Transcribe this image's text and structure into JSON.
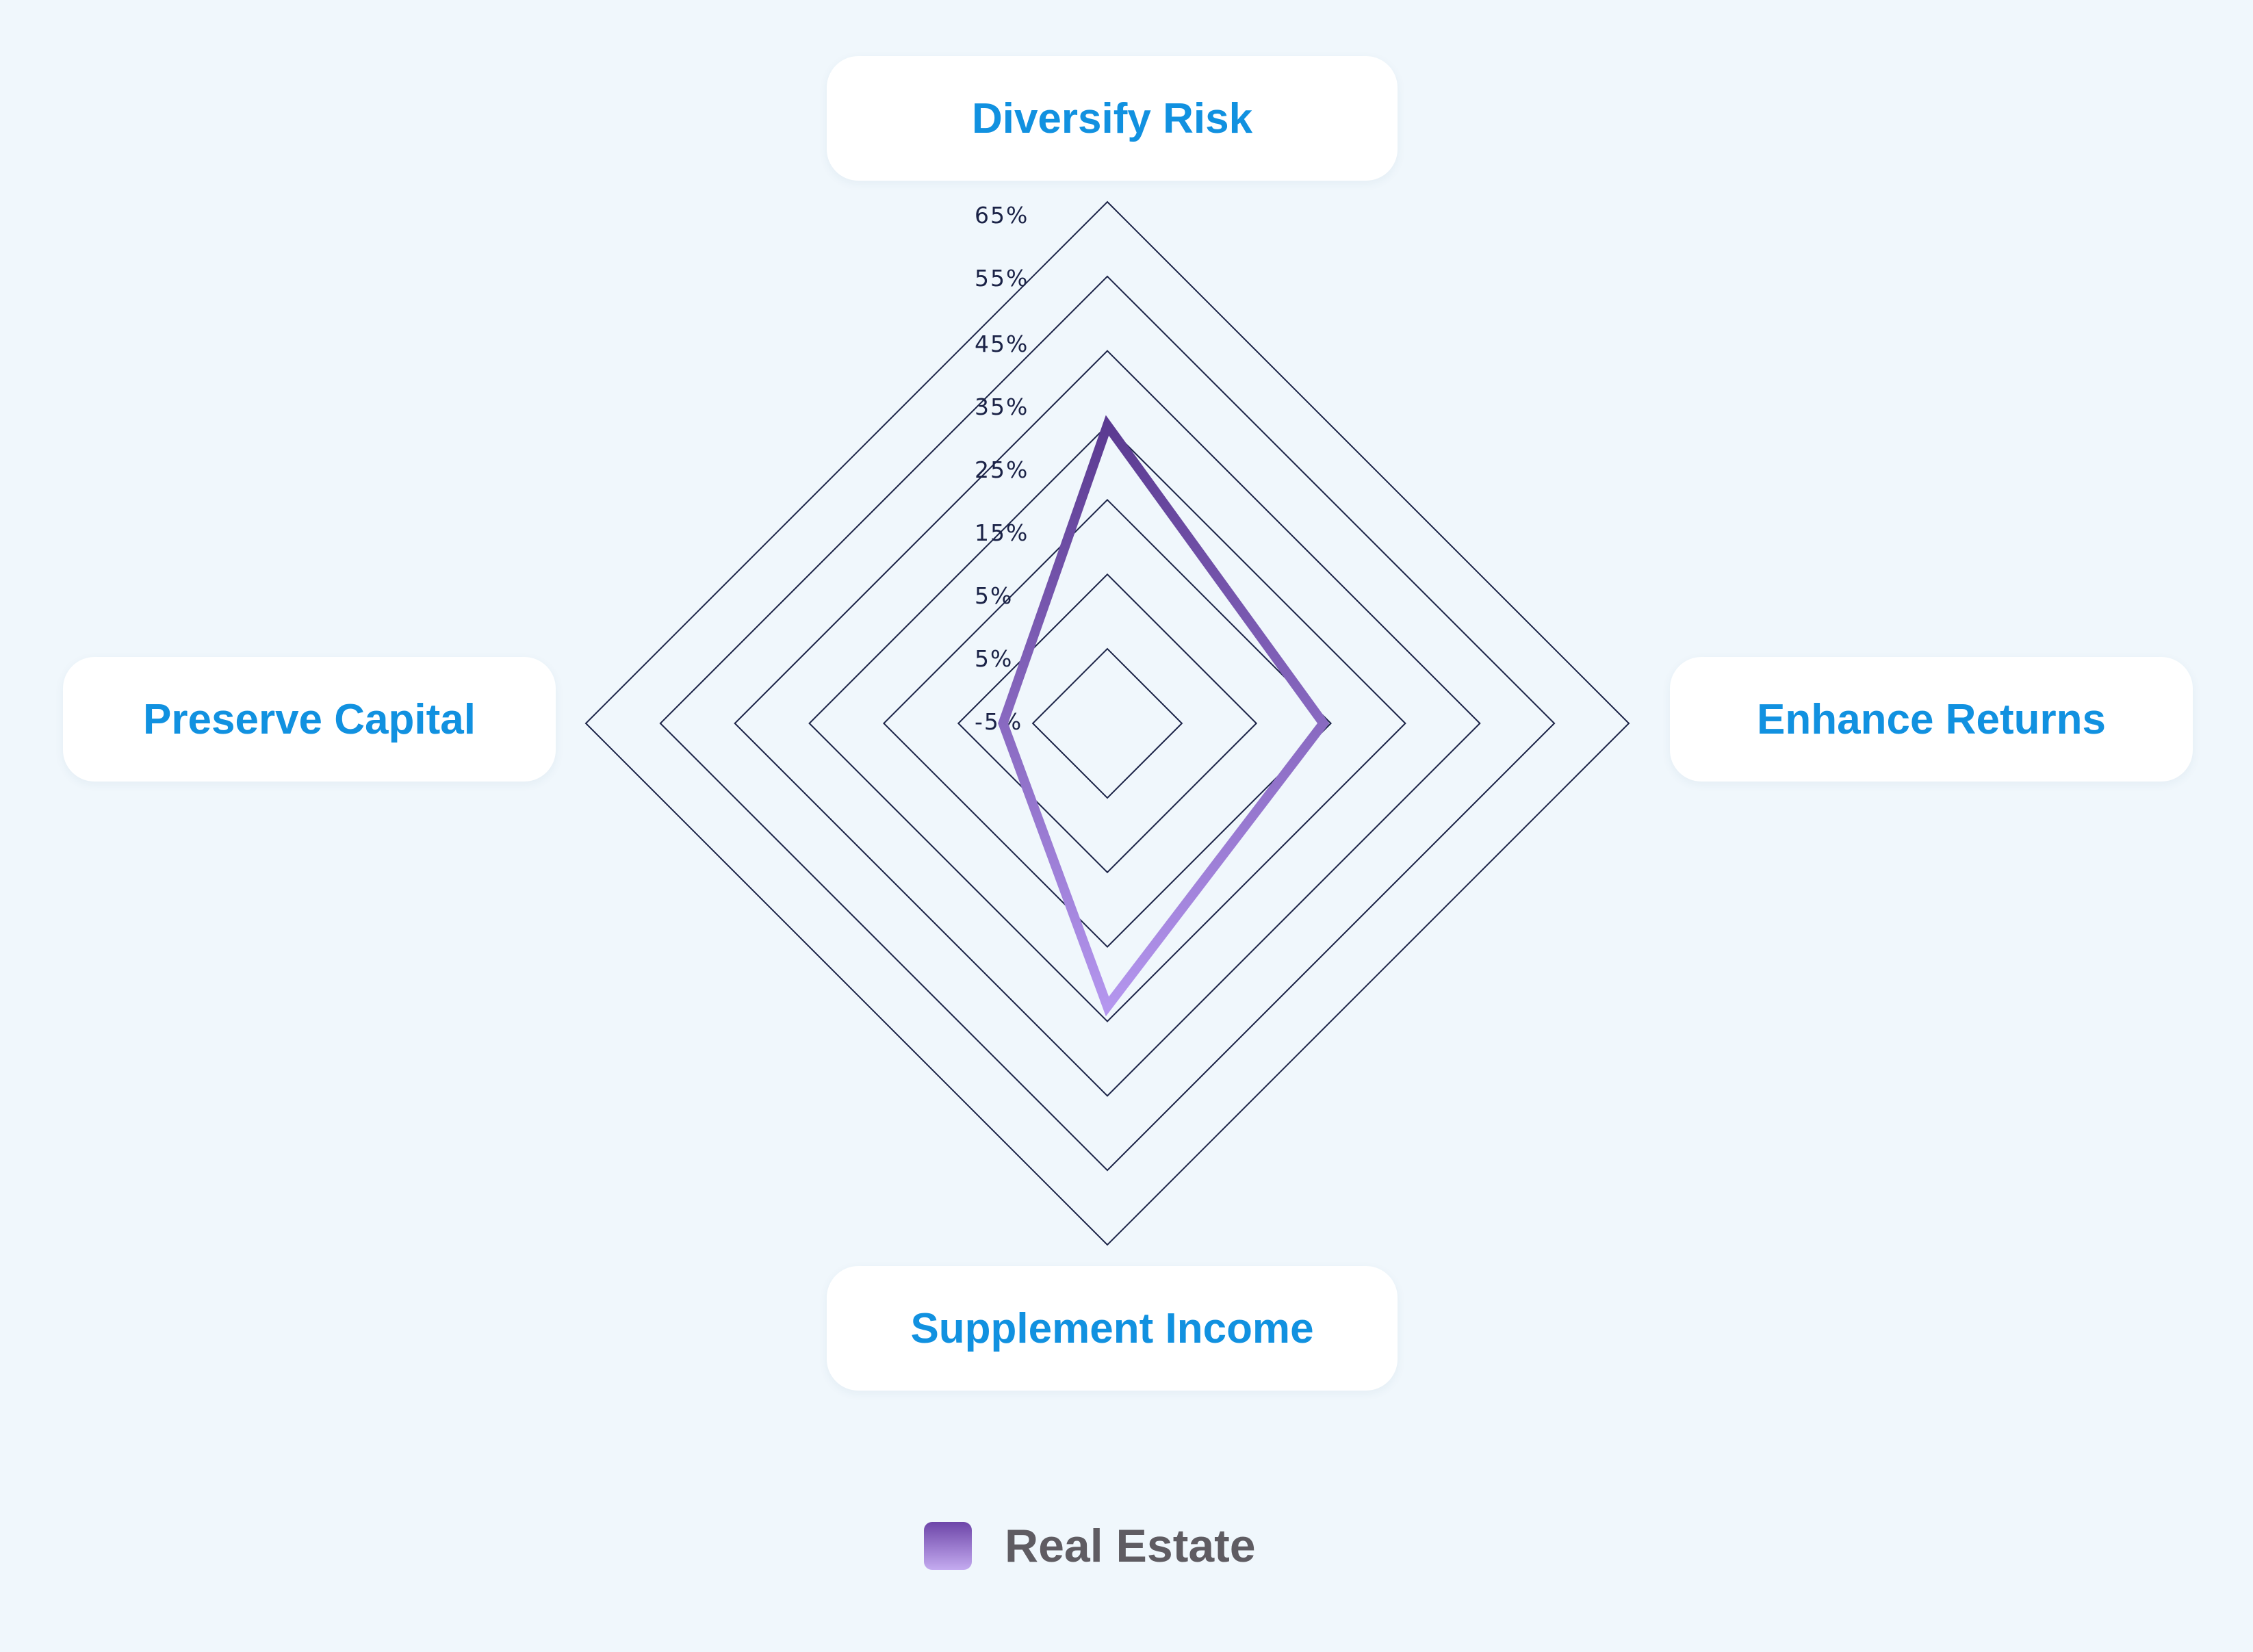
{
  "chart_data": {
    "type": "radar",
    "axes": [
      "Diversify Risk",
      "Enhance Returns",
      "Supplement Income",
      "Preserve Capital"
    ],
    "tick_labels": [
      "65%",
      "55%",
      "45%",
      "35%",
      "25%",
      "15%",
      "5%",
      "5%",
      "-5%"
    ],
    "range": [
      -5,
      65
    ],
    "rings": 7,
    "series": [
      {
        "name": "Real Estate",
        "values": [
          35,
          24,
          33,
          9
        ]
      }
    ],
    "legend_position": "bottom-center",
    "grid": true
  },
  "colors": {
    "axis_label": "#1191e0",
    "grid_line": "#1b2347",
    "series_stroke_top": "#5b3a91",
    "series_stroke_bottom": "#b496ee",
    "background": "#f0f7fc",
    "legend_text": "#5f5c62"
  }
}
